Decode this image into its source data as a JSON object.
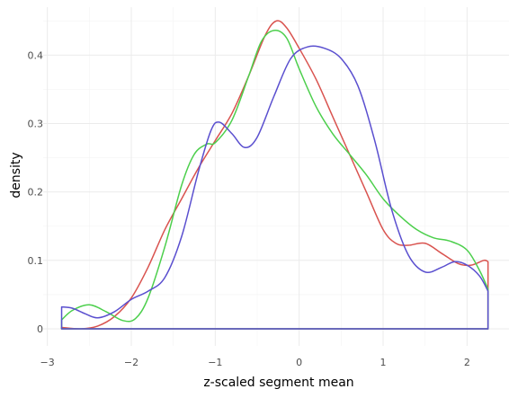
{
  "chart_data": {
    "type": "line",
    "subtype": "density",
    "title": "",
    "xlabel": "z-scaled segment mean",
    "ylabel": "density",
    "xlim": [
      -3.05,
      2.5
    ],
    "ylim": [
      -0.025,
      0.47
    ],
    "x_ticks": [
      -3,
      -2,
      -1,
      0,
      1,
      2
    ],
    "x_tick_labels": [
      "−3",
      "−2",
      "−1",
      "0",
      "1",
      "2"
    ],
    "y_ticks": [
      0,
      0.1,
      0.2,
      0.3,
      0.4
    ],
    "y_tick_labels": [
      "0",
      "0.1",
      "0.2",
      "0.3",
      "0.4"
    ],
    "grid": true,
    "legend": "none",
    "series": [
      {
        "color": "#d9534f",
        "points": [
          [
            -2.83,
            0
          ],
          [
            -2.83,
            0.002
          ],
          [
            -2.6,
            0.0
          ],
          [
            -2.4,
            0.004
          ],
          [
            -2.2,
            0.018
          ],
          [
            -2.0,
            0.045
          ],
          [
            -1.8,
            0.09
          ],
          [
            -1.6,
            0.145
          ],
          [
            -1.4,
            0.19
          ],
          [
            -1.2,
            0.235
          ],
          [
            -1.0,
            0.275
          ],
          [
            -0.8,
            0.315
          ],
          [
            -0.6,
            0.37
          ],
          [
            -0.4,
            0.43
          ],
          [
            -0.27,
            0.45
          ],
          [
            -0.15,
            0.44
          ],
          [
            0.0,
            0.41
          ],
          [
            0.2,
            0.365
          ],
          [
            0.4,
            0.31
          ],
          [
            0.6,
            0.255
          ],
          [
            0.8,
            0.2
          ],
          [
            1.0,
            0.145
          ],
          [
            1.15,
            0.125
          ],
          [
            1.3,
            0.122
          ],
          [
            1.5,
            0.125
          ],
          [
            1.7,
            0.11
          ],
          [
            1.9,
            0.095
          ],
          [
            2.05,
            0.093
          ],
          [
            2.2,
            0.1
          ],
          [
            2.25,
            0.098
          ],
          [
            2.25,
            0
          ]
        ]
      },
      {
        "color": "#4ccf4c",
        "points": [
          [
            -2.83,
            0
          ],
          [
            -2.83,
            0.013
          ],
          [
            -2.7,
            0.027
          ],
          [
            -2.5,
            0.035
          ],
          [
            -2.3,
            0.025
          ],
          [
            -2.1,
            0.012
          ],
          [
            -1.95,
            0.015
          ],
          [
            -1.8,
            0.045
          ],
          [
            -1.6,
            0.12
          ],
          [
            -1.4,
            0.21
          ],
          [
            -1.25,
            0.255
          ],
          [
            -1.1,
            0.27
          ],
          [
            -1.0,
            0.272
          ],
          [
            -0.8,
            0.305
          ],
          [
            -0.6,
            0.37
          ],
          [
            -0.45,
            0.42
          ],
          [
            -0.3,
            0.436
          ],
          [
            -0.15,
            0.425
          ],
          [
            0.0,
            0.38
          ],
          [
            0.2,
            0.325
          ],
          [
            0.4,
            0.285
          ],
          [
            0.6,
            0.255
          ],
          [
            0.8,
            0.225
          ],
          [
            1.0,
            0.19
          ],
          [
            1.2,
            0.165
          ],
          [
            1.4,
            0.145
          ],
          [
            1.6,
            0.133
          ],
          [
            1.8,
            0.128
          ],
          [
            2.0,
            0.115
          ],
          [
            2.15,
            0.085
          ],
          [
            2.25,
            0.058
          ],
          [
            2.25,
            0
          ]
        ]
      },
      {
        "color": "#5a4fcf",
        "points": [
          [
            -2.83,
            0
          ],
          [
            -2.83,
            0.032
          ],
          [
            -2.7,
            0.03
          ],
          [
            -2.55,
            0.022
          ],
          [
            -2.4,
            0.016
          ],
          [
            -2.2,
            0.025
          ],
          [
            -2.0,
            0.043
          ],
          [
            -1.8,
            0.055
          ],
          [
            -1.6,
            0.075
          ],
          [
            -1.4,
            0.135
          ],
          [
            -1.2,
            0.23
          ],
          [
            -1.05,
            0.29
          ],
          [
            -0.95,
            0.302
          ],
          [
            -0.8,
            0.285
          ],
          [
            -0.65,
            0.265
          ],
          [
            -0.5,
            0.28
          ],
          [
            -0.3,
            0.34
          ],
          [
            -0.1,
            0.395
          ],
          [
            0.1,
            0.412
          ],
          [
            0.3,
            0.41
          ],
          [
            0.5,
            0.395
          ],
          [
            0.7,
            0.355
          ],
          [
            0.9,
            0.275
          ],
          [
            1.1,
            0.175
          ],
          [
            1.3,
            0.108
          ],
          [
            1.5,
            0.083
          ],
          [
            1.7,
            0.09
          ],
          [
            1.85,
            0.098
          ],
          [
            2.0,
            0.093
          ],
          [
            2.15,
            0.077
          ],
          [
            2.25,
            0.055
          ],
          [
            2.25,
            0
          ]
        ]
      }
    ]
  }
}
